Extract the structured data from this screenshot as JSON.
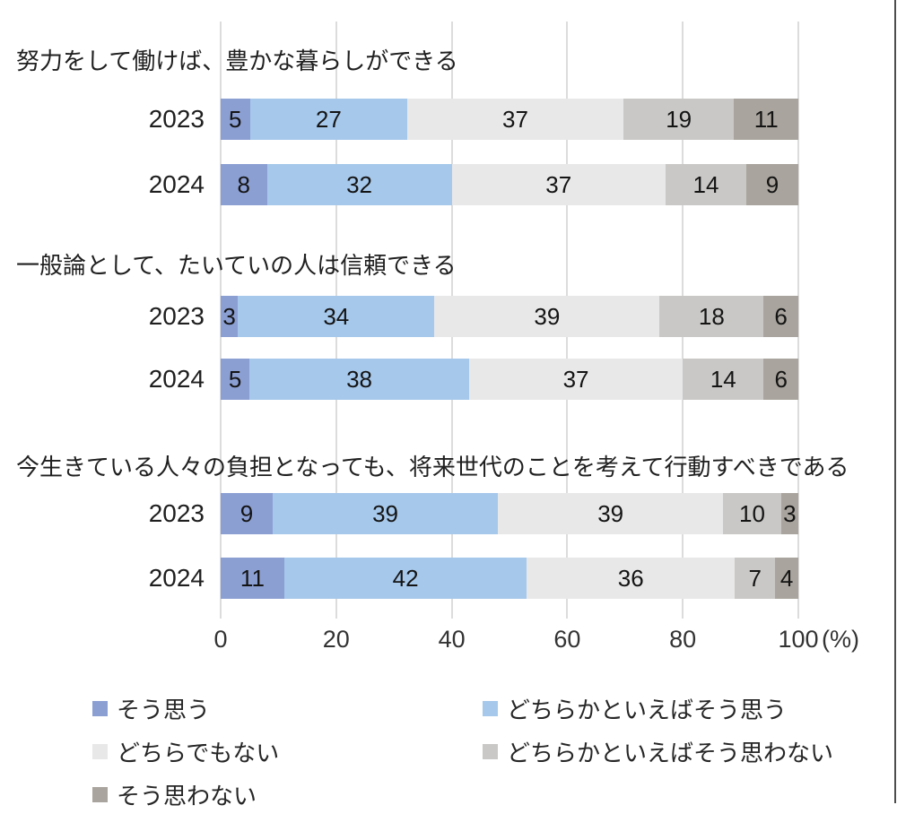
{
  "colors": {
    "background": "#FFFFFF",
    "grid": "#DCDCDC",
    "text": "#1F1F1F"
  },
  "x_axis_unit_label": "(%)",
  "chart_data": {
    "type": "bar",
    "orientation": "horizontal",
    "stacked": true,
    "unit": "%",
    "x_axis": {
      "ticks": [
        0,
        20,
        40,
        60,
        80,
        100
      ],
      "suffix_label": "(%)",
      "min": 0,
      "max": 100,
      "grid": true
    },
    "series_labels": [
      "そう思う",
      "どちらかといえばそう思う",
      "どちらでもない",
      "どちらかといえばそう思わない",
      "そう思わない"
    ],
    "series_colors": [
      "#8B9FD3",
      "#A6C8EB",
      "#E8E8E8",
      "#C9C8C6",
      "#A9A49D"
    ],
    "legend_order": [
      0,
      1,
      2,
      3,
      4
    ],
    "legend_position": "bottom",
    "groups": [
      {
        "question": "努力をして働けば、豊かな暮らしができる",
        "rows": [
          {
            "year": "2023",
            "values": [
              5,
              27,
              37,
              19,
              11
            ]
          },
          {
            "year": "2024",
            "values": [
              8,
              32,
              37,
              14,
              9
            ]
          }
        ]
      },
      {
        "question": "一般論として、たいていの人は信頼できる",
        "rows": [
          {
            "year": "2023",
            "values": [
              3,
              34,
              39,
              18,
              6
            ]
          },
          {
            "year": "2024",
            "values": [
              5,
              38,
              37,
              14,
              6
            ]
          }
        ]
      },
      {
        "question": "今生きている人々の負担となっても、将来世代のことを考えて行動すべきである",
        "rows": [
          {
            "year": "2023",
            "values": [
              9,
              39,
              39,
              10,
              3
            ]
          },
          {
            "year": "2024",
            "values": [
              11,
              42,
              36,
              7,
              4
            ]
          }
        ]
      }
    ]
  }
}
